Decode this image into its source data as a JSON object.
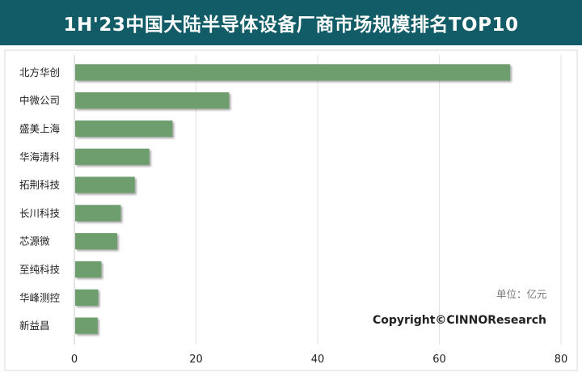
{
  "header": {
    "title": "1H'23中国大陆半导体设备厂商市场规模排名TOP10"
  },
  "chart_data": {
    "type": "bar",
    "orientation": "horizontal",
    "title": "1H'23中国大陆半导体设备厂商市场规模排名TOP10",
    "categories": [
      "北方华创",
      "中微公司",
      "盛美上海",
      "华海清科",
      "拓荆科技",
      "长川科技",
      "芯源微",
      "至纯科技",
      "华峰测控",
      "新益昌"
    ],
    "values": [
      71.5,
      25.3,
      16.0,
      12.2,
      9.8,
      7.5,
      6.9,
      4.3,
      3.8,
      3.7
    ],
    "xlim": [
      0,
      80
    ],
    "xticks": [
      0,
      20,
      40,
      60,
      80
    ],
    "grid": true,
    "unit": "单位：亿元",
    "bar_color": "#6e9e6e"
  },
  "copyright": "Copyright©CINNOResearch"
}
